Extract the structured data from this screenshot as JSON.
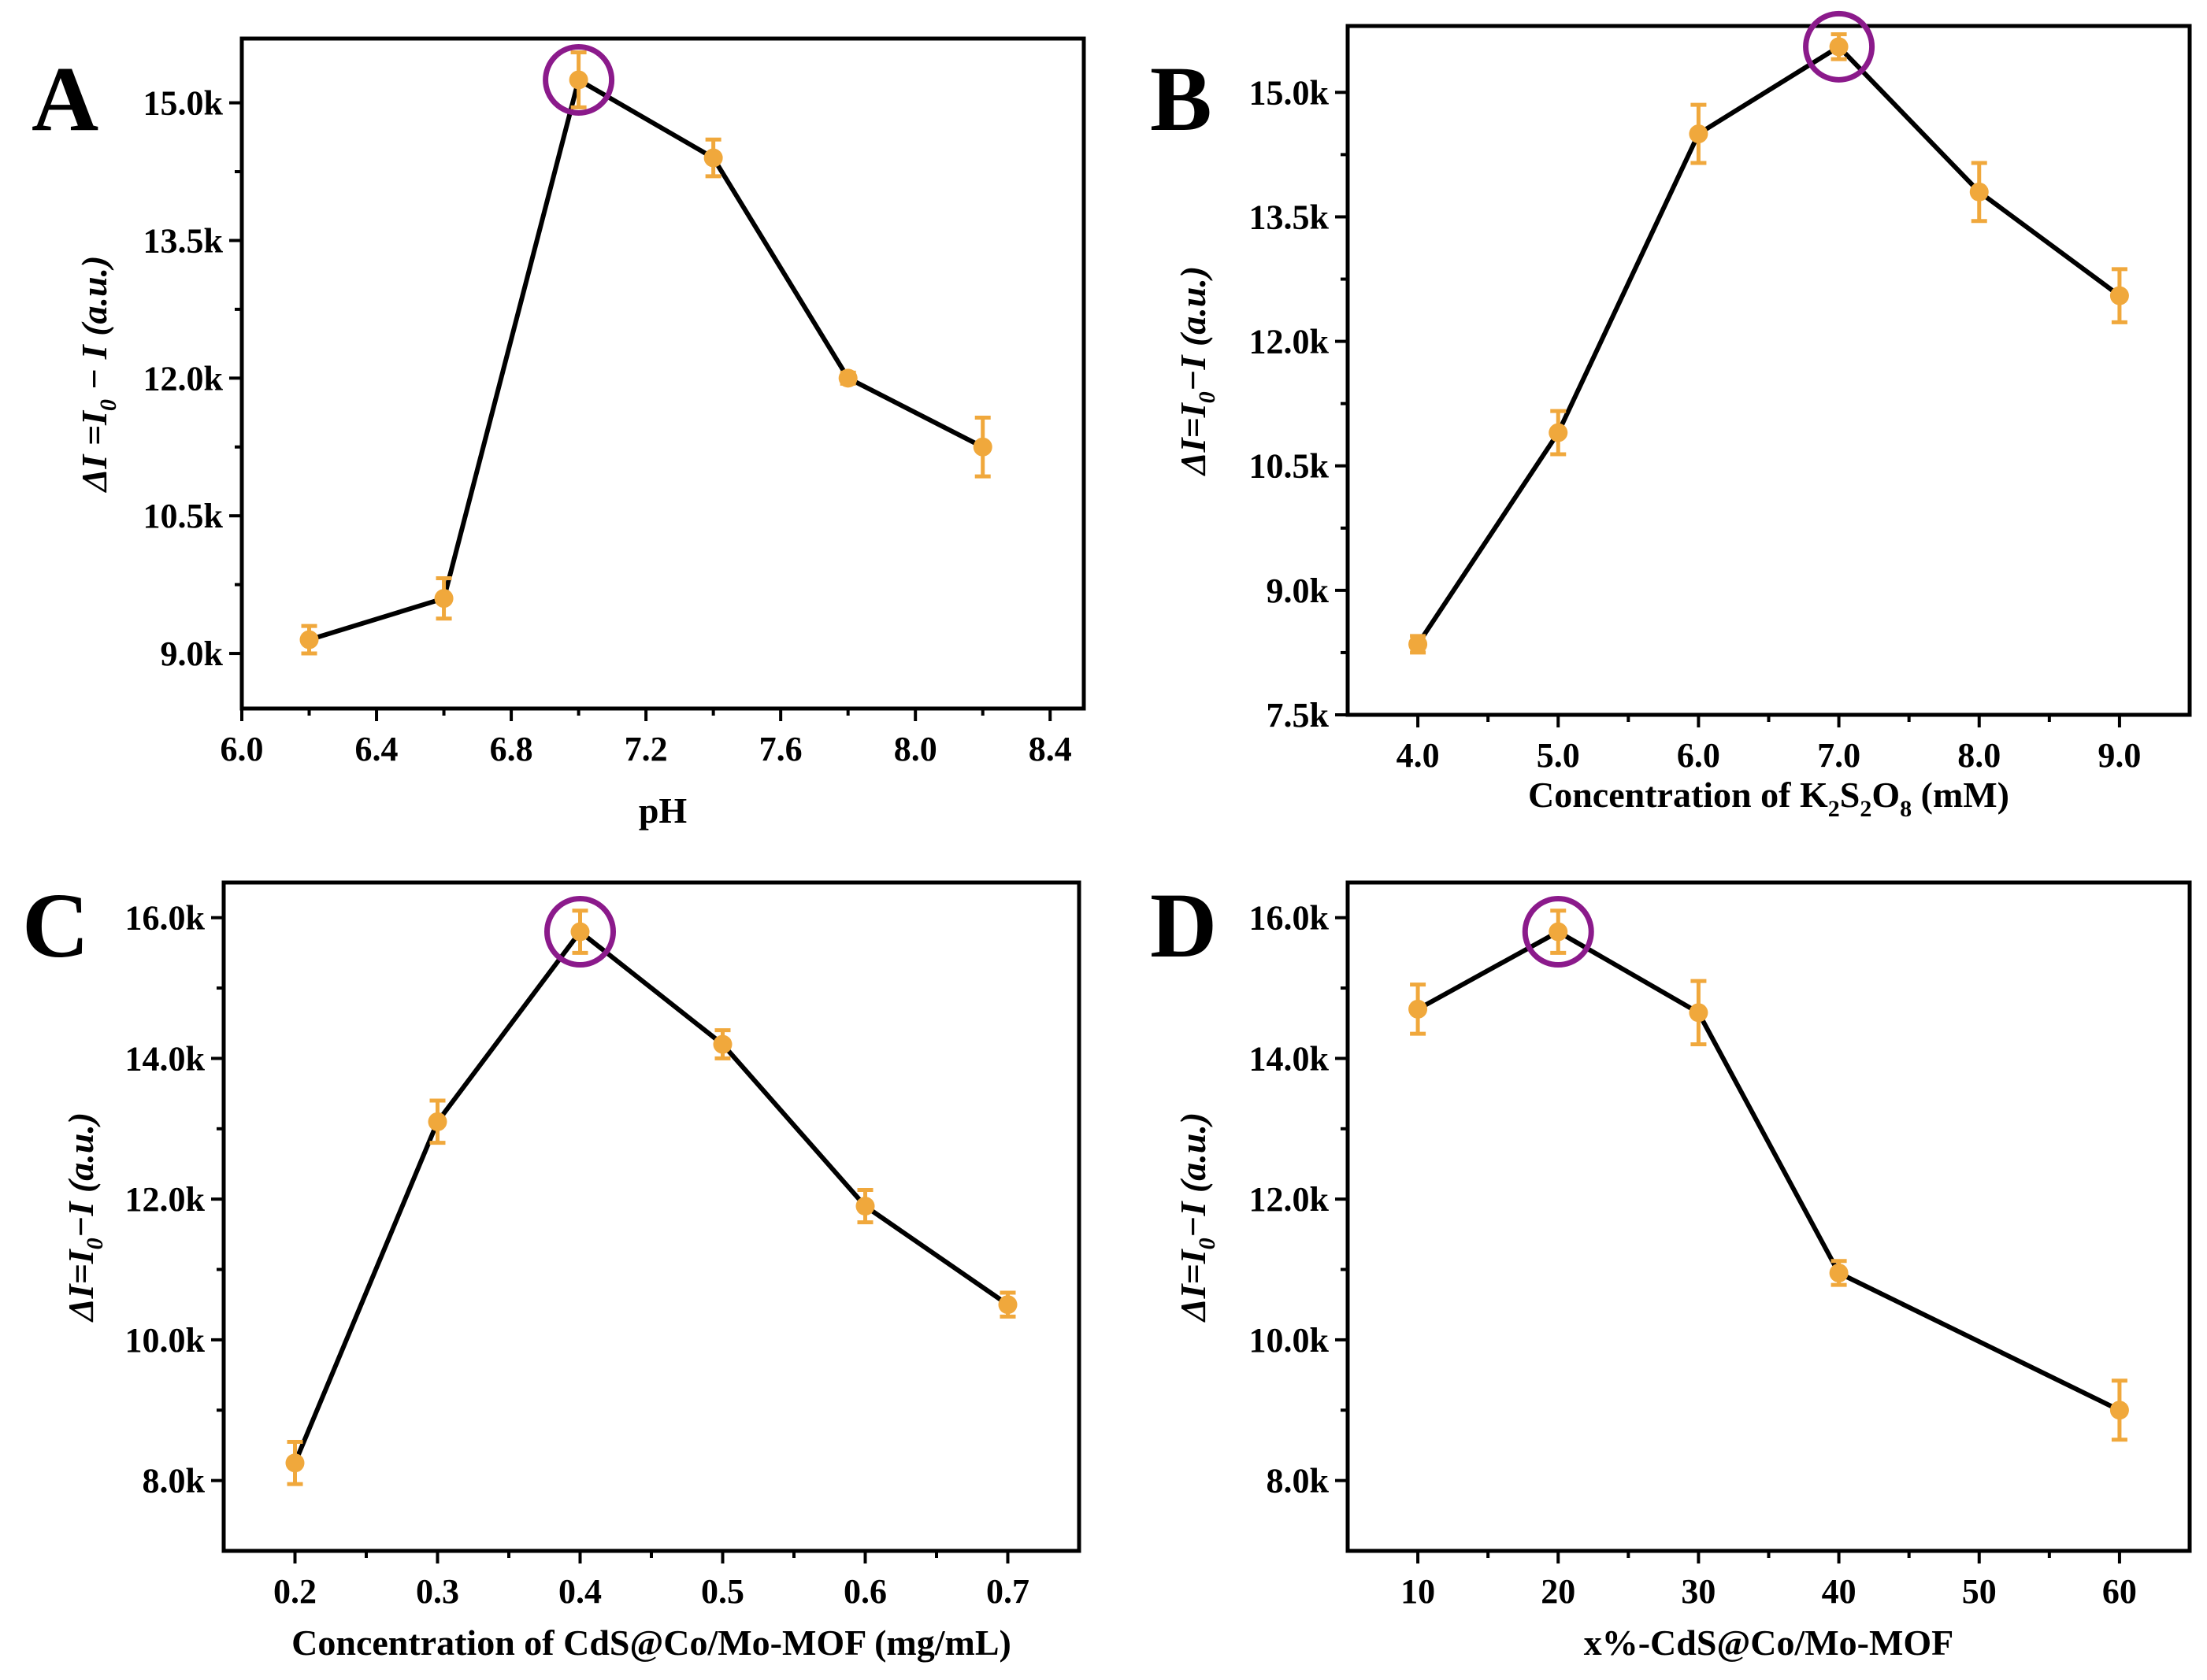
{
  "figure": {
    "chart_data": [
      {
        "type": "line",
        "panel_label": "A",
        "x": [
          6.2,
          6.6,
          7.0,
          7.4,
          7.8,
          8.2
        ],
        "values": [
          9150,
          9600,
          15250,
          14400,
          12000,
          11250
        ],
        "errors": [
          150,
          220,
          300,
          200,
          60,
          320
        ],
        "xlim": [
          6.0,
          8.5
        ],
        "ylim": [
          8400,
          15700
        ],
        "xticks": [
          6.0,
          6.4,
          6.8,
          7.2,
          7.6,
          8.0,
          8.4
        ],
        "xtick_labels": [
          "6.0",
          "6.4",
          "6.8",
          "7.2",
          "7.6",
          "8.0",
          "8.4"
        ],
        "yticks": [
          9000,
          10500,
          12000,
          13500,
          15000
        ],
        "ytick_labels": [
          "9.0k",
          "10.5k",
          "12.0k",
          "13.5k",
          "15.0k"
        ],
        "xlabel": "pH",
        "ylabel": "ΔI =I₀ − I (a.u.)",
        "highlight_index": 2,
        "line_color": "#000000",
        "marker_color": "#f0a83c",
        "highlight_color": "#8b1a8b",
        "grid": false
      },
      {
        "type": "line",
        "panel_label": "B",
        "x": [
          4.0,
          5.0,
          6.0,
          7.0,
          8.0,
          9.0
        ],
        "values": [
          8350,
          10900,
          14500,
          15550,
          13800,
          12550
        ],
        "errors": [
          100,
          260,
          350,
          150,
          350,
          320
        ],
        "xlim": [
          3.5,
          9.5
        ],
        "ylim": [
          7500,
          15800
        ],
        "xticks": [
          4.0,
          5.0,
          6.0,
          7.0,
          8.0,
          9.0
        ],
        "xtick_labels": [
          "4.0",
          "5.0",
          "6.0",
          "7.0",
          "8.0",
          "9.0"
        ],
        "yticks": [
          7500,
          9000,
          10500,
          12000,
          13500,
          15000
        ],
        "ytick_labels": [
          "7.5k",
          "9.0k",
          "10.5k",
          "12.0k",
          "13.5k",
          "15.0k"
        ],
        "xlabel": "Concentration of K₂S₂O₈ (mM)",
        "ylabel": "ΔI=I₀−I (a.u.)",
        "highlight_index": 3,
        "line_color": "#000000",
        "marker_color": "#f0a83c",
        "highlight_color": "#8b1a8b",
        "grid": false
      },
      {
        "type": "line",
        "panel_label": "C",
        "x": [
          0.2,
          0.3,
          0.4,
          0.5,
          0.6,
          0.7
        ],
        "values": [
          8250,
          13100,
          15800,
          14200,
          11900,
          10500
        ],
        "errors": [
          300,
          300,
          300,
          200,
          230,
          170
        ],
        "xlim": [
          0.15,
          0.75
        ],
        "ylim": [
          7000,
          16500
        ],
        "xticks": [
          0.2,
          0.3,
          0.4,
          0.5,
          0.6,
          0.7
        ],
        "xtick_labels": [
          "0.2",
          "0.3",
          "0.4",
          "0.5",
          "0.6",
          "0.7"
        ],
        "yticks": [
          8000,
          10000,
          12000,
          14000,
          16000
        ],
        "ytick_labels": [
          "8.0k",
          "10.0k",
          "12.0k",
          "14.0k",
          "16.0k"
        ],
        "xlabel": "Concentration of CdS@Co/Mo-MOF (mg/mL)",
        "ylabel": "ΔI=I₀−I (a.u.)",
        "highlight_index": 2,
        "line_color": "#000000",
        "marker_color": "#f0a83c",
        "highlight_color": "#8b1a8b",
        "grid": false
      },
      {
        "type": "line",
        "panel_label": "D",
        "x": [
          10,
          20,
          30,
          40,
          60
        ],
        "values": [
          14700,
          15800,
          14650,
          10950,
          9000
        ],
        "errors": [
          350,
          300,
          450,
          170,
          420
        ],
        "xlim": [
          5,
          65
        ],
        "ylim": [
          7000,
          16500
        ],
        "xticks": [
          10,
          20,
          30,
          40,
          50,
          60
        ],
        "xtick_labels": [
          "10",
          "20",
          "30",
          "40",
          "50",
          "60"
        ],
        "yticks": [
          8000,
          10000,
          12000,
          14000,
          16000
        ],
        "ytick_labels": [
          "8.0k",
          "10.0k",
          "12.0k",
          "14.0k",
          "16.0k"
        ],
        "xlabel": "x%-CdS@Co/Mo-MOF",
        "ylabel": "ΔI=I₀−I (a.u.)",
        "highlight_index": 1,
        "line_color": "#000000",
        "marker_color": "#f0a83c",
        "highlight_color": "#8b1a8b",
        "grid": false
      }
    ]
  }
}
